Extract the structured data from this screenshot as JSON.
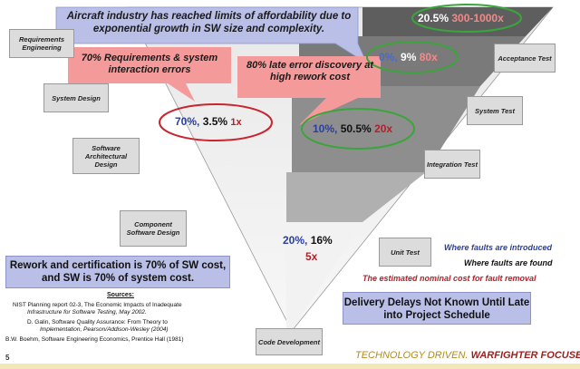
{
  "headline": "Aircraft industry has reached limits of affordability due to exponential growth in SW size and complexity.",
  "callout_requirements": "70% Requirements & system interaction errors",
  "callout_late_error": "80% late error discovery at high rework cost",
  "phases_left": [
    "Requirements Engineering",
    "System Design",
    "Software Architectural Design",
    "Component Software Design"
  ],
  "phase_bottom": "Code Development",
  "phases_right": [
    "Acceptance Test",
    "System Test",
    "Integration Test",
    "Unit Test"
  ],
  "stats": [
    {
      "introduced": "70%,",
      "found": "3.5%",
      "cost": "1x"
    },
    {
      "introduced": "10%,",
      "found": "50.5%",
      "cost": "20x"
    },
    {
      "introduced": "0%,",
      "found": "9%",
      "cost": "80x"
    },
    {
      "introduced": "",
      "found": "20.5%",
      "cost": "300-1000x"
    },
    {
      "introduced": "20%,",
      "found": "16%",
      "cost": "5x"
    }
  ],
  "legend": {
    "introduced": "Where faults are introduced",
    "found": "Where faults are found",
    "cost": "The estimated nominal cost for fault removal"
  },
  "rework_box": "Rework and certification is 70% of SW cost, and SW is 70% of system cost.",
  "delivery_box": "Delivery Delays Not Known Until Late into Project Schedule",
  "sources": {
    "heading": "Sources:",
    "nist_1": "NIST Planning report 02-3, The Economic Impacts of Inadequate",
    "nist_2": "Infrastructure for Software Testing, May 2002.",
    "galin_1": "D. Galin, Software Quality Assurance: From Theory to",
    "galin_2": "Implementation, Pearson/Addison-Wesley (2004)",
    "boehm": "B.W. Boehm, Software Engineering Economics, Prentice Hall (1981)"
  },
  "page_number": "5",
  "footer": {
    "part1": "TECHNOLOGY DRIVEN.",
    "part2": "WARFIGHTER FOCUSED."
  },
  "colors": {
    "blue": "#2a3fa0",
    "red": "#b3202a",
    "callout_pink": "#f59a9a",
    "box_blue": "#b9bfe6",
    "footer_gold": "#b38a1e",
    "footer_red": "#9a1f1f"
  }
}
